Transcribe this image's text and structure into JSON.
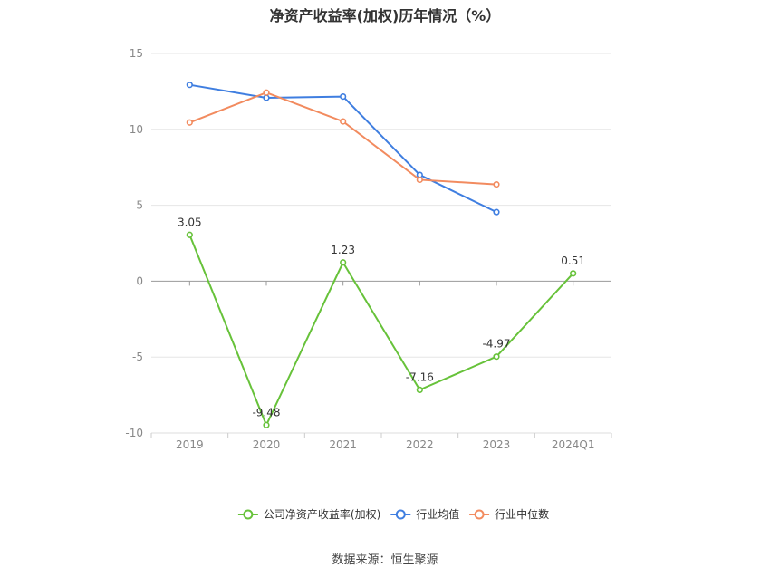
{
  "chart_data": {
    "type": "line",
    "title": "净资产收益率(加权)历年情况（%）",
    "categories": [
      "2019",
      "2020",
      "2021",
      "2022",
      "2023",
      "2024Q1"
    ],
    "ylim": [
      -10,
      15
    ],
    "yticks": [
      15,
      10,
      5,
      0,
      -5,
      -10
    ],
    "grid": true,
    "legend_position": "bottom",
    "series": [
      {
        "name": "公司净资产收益率(加权)",
        "color": "#67c23a",
        "values": [
          3.05,
          -9.48,
          1.23,
          -7.16,
          -4.97,
          0.51
        ],
        "data_labels": [
          "3.05",
          "-9.48",
          "1.23",
          "-7.16",
          "-4.97",
          "0.51"
        ]
      },
      {
        "name": "行业均值",
        "color": "#3f7ee0",
        "values": [
          12.93,
          12.08,
          12.16,
          7.0,
          4.55,
          null
        ]
      },
      {
        "name": "行业中位数",
        "color": "#f28b5f",
        "values": [
          10.45,
          12.42,
          10.52,
          6.68,
          6.37,
          null
        ]
      }
    ]
  },
  "footer": {
    "source": "数据来源：恒生聚源"
  }
}
